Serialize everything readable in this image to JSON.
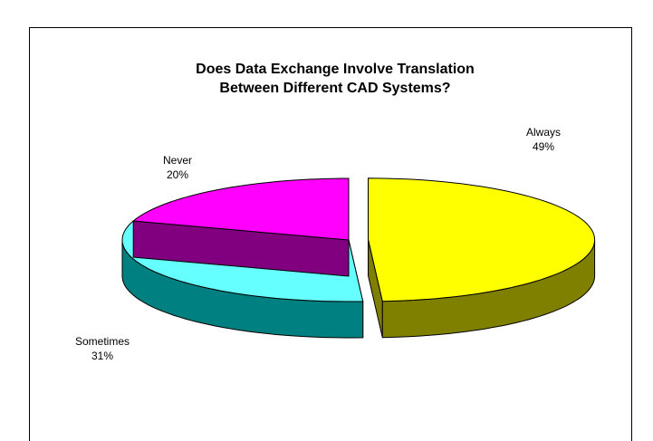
{
  "chart_data": {
    "type": "pie",
    "title": "Does Data Exchange Involve Translation Between Different CAD Systems?",
    "categories": [
      "Always",
      "Sometimes",
      "Never"
    ],
    "values": [
      49,
      31,
      20
    ],
    "value_labels": [
      "49%",
      "31%",
      "20%"
    ],
    "colors": [
      "#ffff00",
      "#66ffff",
      "#ff00ff"
    ],
    "side_colors": [
      "#808000",
      "#008080",
      "#800080"
    ]
  }
}
